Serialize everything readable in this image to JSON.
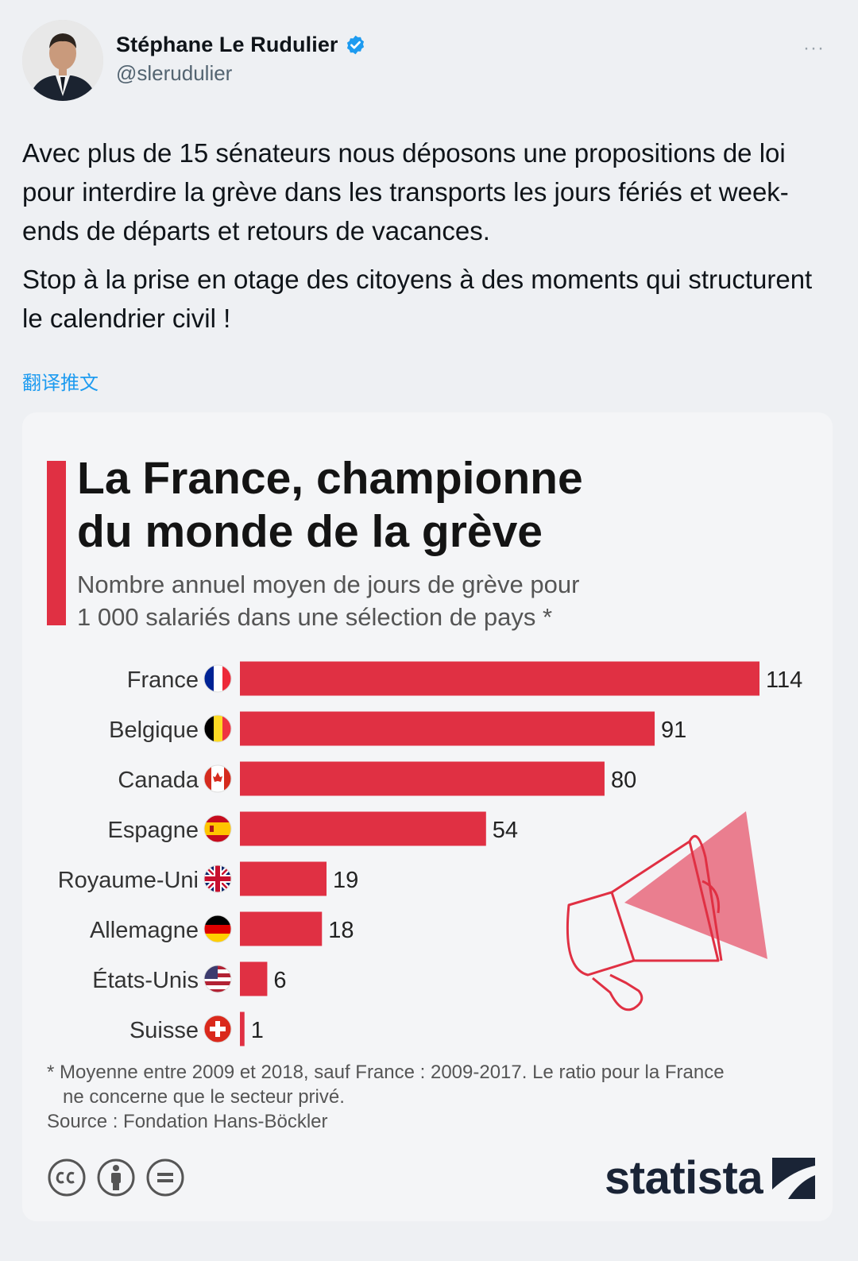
{
  "tweet": {
    "display_name": "Stéphane Le Rudulier",
    "handle": "@slerudulier",
    "more_label": "···",
    "paragraphs": [
      "Avec plus de 15 sénateurs nous déposons une propositions de loi pour interdire la grève dans les transports les jours fériés et week-ends de départs et retours de vacances.",
      "Stop à la prise en otage des citoyens à des moments qui structurent le calendrier civil !"
    ],
    "translate_label": "翻译推文"
  },
  "colors": {
    "accent_red": "#e03043",
    "link_blue": "#1d9bf0",
    "verified_blue": "#1d9bf0",
    "brand_navy": "#1a2436"
  },
  "chart_data": {
    "type": "bar",
    "orientation": "horizontal",
    "title_lines": [
      "La France, championne",
      "du monde de la grève"
    ],
    "subtitle_lines": [
      "Nombre annuel moyen de jours de grève pour",
      "1 000 salariés dans une sélection de pays *"
    ],
    "categories": [
      "France",
      "Belgique",
      "Canada",
      "Espagne",
      "Royaume-Uni",
      "Allemagne",
      "États-Unis",
      "Suisse"
    ],
    "values": [
      114,
      91,
      80,
      54,
      19,
      18,
      6,
      1
    ],
    "flags": [
      "france-flag-icon",
      "belgium-flag-icon",
      "canada-flag-icon",
      "spain-flag-icon",
      "uk-flag-icon",
      "germany-flag-icon",
      "usa-flag-icon",
      "switzerland-flag-icon"
    ],
    "xlim": [
      0,
      114
    ],
    "footnote_lines": [
      "* Moyenne entre 2009 et 2018, sauf France : 2009-2017. Le ratio pour la France",
      "ne concerne que le secteur privé."
    ],
    "source": "Source : Fondation Hans-Böckler",
    "illustration": "megaphone-icon"
  },
  "branding": {
    "name": "statista",
    "license_icons": [
      "cc-icon",
      "by-icon",
      "nd-icon"
    ]
  }
}
